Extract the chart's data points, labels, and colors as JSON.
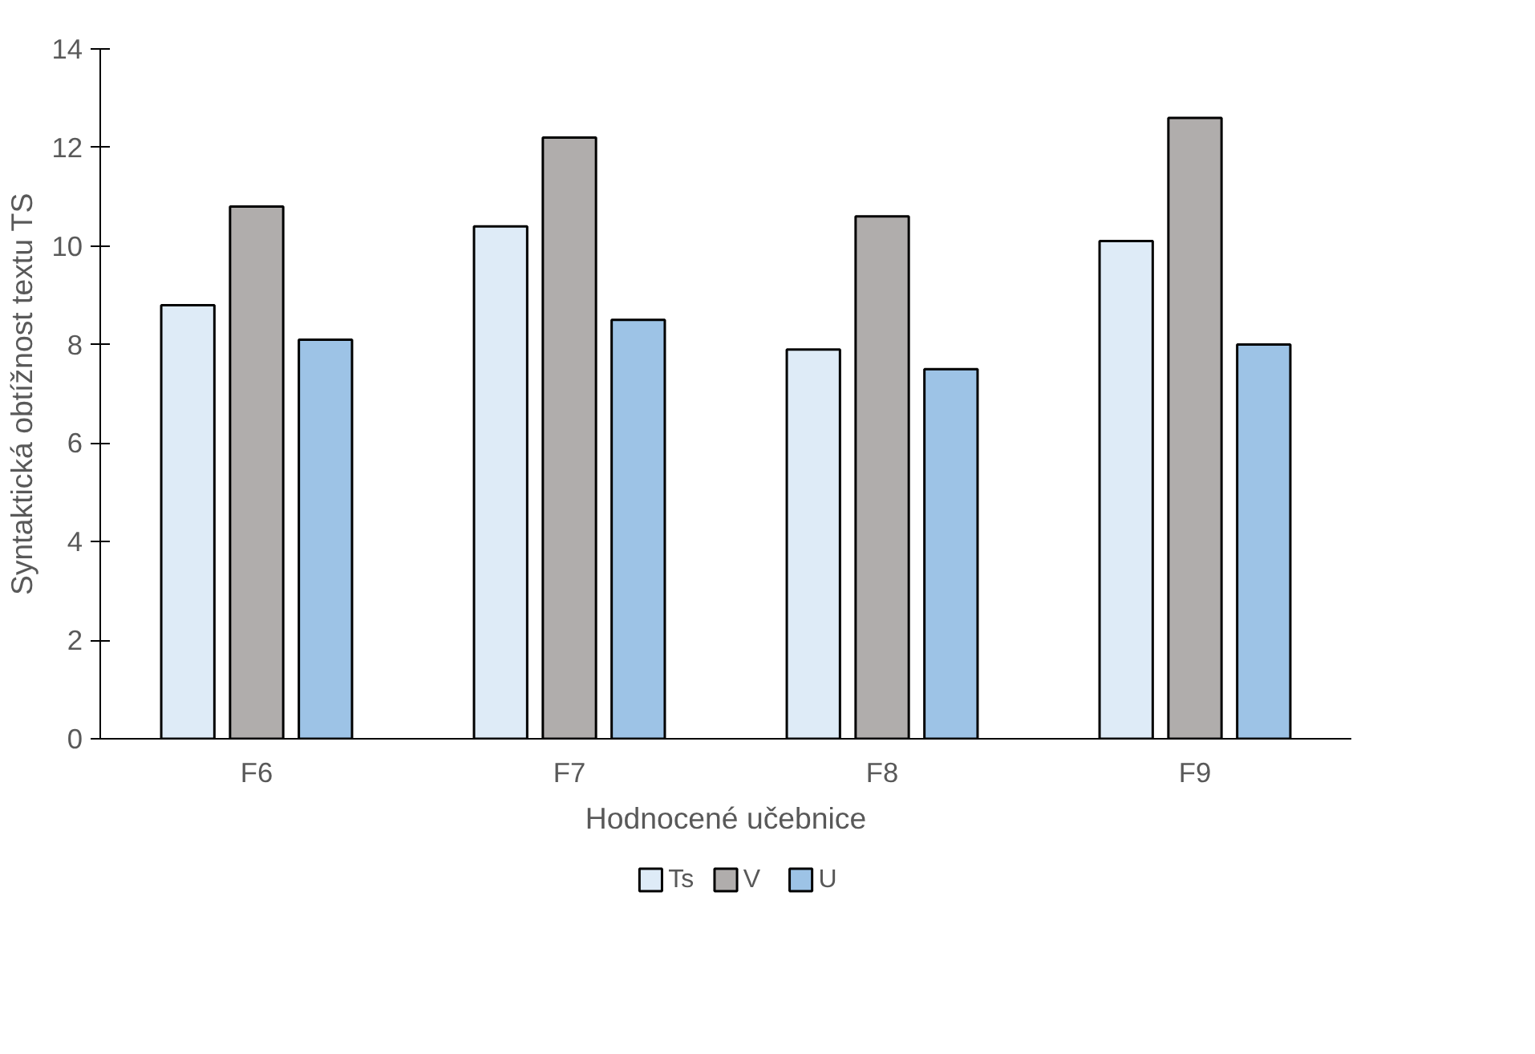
{
  "chart_data": {
    "type": "bar",
    "xlabel": "Hodnocené učebnice",
    "ylabel": "Syntaktická obtížnost textu TS",
    "categories": [
      "F6",
      "F7",
      "F8",
      "F9"
    ],
    "series": [
      {
        "name": "Ts",
        "color": "#deebf7",
        "values": [
          8.8,
          10.4,
          7.9,
          10.1
        ]
      },
      {
        "name": "V",
        "color": "#b0adac",
        "values": [
          10.8,
          12.2,
          10.6,
          12.6
        ]
      },
      {
        "name": "U",
        "color": "#9dc3e6",
        "values": [
          8.1,
          8.5,
          7.5,
          8.0
        ]
      }
    ],
    "ylim": [
      0,
      14
    ],
    "yticks": [
      0,
      2,
      4,
      6,
      8,
      10,
      12,
      14
    ],
    "grid": false,
    "legend": "bottom"
  }
}
